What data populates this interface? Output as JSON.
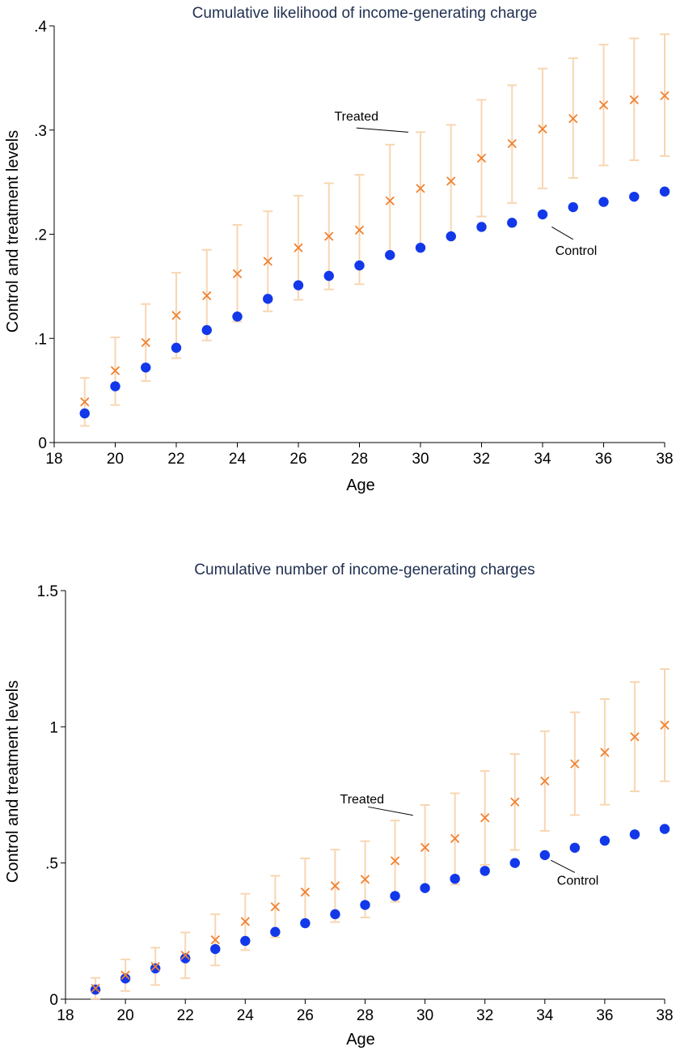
{
  "colors": {
    "treated": "#F0812F",
    "treated_ci": "#F8D6B2",
    "control": "#1238EA",
    "axis": "#000000",
    "title": "#1F2F4F",
    "background": "#FFFFFF"
  },
  "chart_data": [
    {
      "type": "scatter",
      "title": "Cumulative likelihood of income-generating charge",
      "xlabel": "Age",
      "ylabel": "Control and treatment levels",
      "xlim": [
        18,
        38
      ],
      "ylim": [
        0,
        0.4
      ],
      "xticks": [
        18,
        20,
        22,
        24,
        26,
        28,
        30,
        32,
        34,
        36,
        38
      ],
      "xtick_labels": [
        "18",
        "20",
        "22",
        "24",
        "26",
        "28",
        "30",
        "32",
        "34",
        "36",
        "38"
      ],
      "yticks": [
        0,
        0.1,
        0.2,
        0.3,
        0.4
      ],
      "ytick_labels": [
        "0",
        ".1",
        ".2",
        ".3",
        ".4"
      ],
      "grid": false,
      "legend": "none",
      "x": [
        19,
        20,
        21,
        22,
        23,
        24,
        25,
        26,
        27,
        28,
        29,
        30,
        31,
        32,
        33,
        34,
        35,
        36,
        37,
        38
      ],
      "series": [
        {
          "name": "Control",
          "marker": "circle",
          "values": [
            0.028,
            0.054,
            0.072,
            0.091,
            0.108,
            0.121,
            0.138,
            0.151,
            0.16,
            0.17,
            0.18,
            0.187,
            0.198,
            0.207,
            0.211,
            0.219,
            0.226,
            0.231,
            0.236,
            0.241
          ]
        },
        {
          "name": "Treated",
          "marker": "x",
          "values": [
            0.039,
            0.069,
            0.096,
            0.122,
            0.141,
            0.162,
            0.174,
            0.187,
            0.198,
            0.204,
            0.232,
            0.244,
            0.251,
            0.273,
            0.287,
            0.301,
            0.311,
            0.324,
            0.329,
            0.333
          ],
          "ci_low": [
            0.016,
            0.036,
            0.059,
            0.081,
            0.098,
            0.116,
            0.126,
            0.137,
            0.147,
            0.152,
            0.178,
            0.189,
            0.196,
            0.217,
            0.23,
            0.244,
            0.254,
            0.266,
            0.271,
            0.275
          ],
          "ci_high": [
            0.062,
            0.101,
            0.133,
            0.163,
            0.185,
            0.209,
            0.222,
            0.237,
            0.249,
            0.257,
            0.286,
            0.298,
            0.305,
            0.329,
            0.343,
            0.359,
            0.369,
            0.382,
            0.388,
            0.392
          ]
        }
      ],
      "annotations": [
        {
          "text": "Treated",
          "target_series": "Treated",
          "from": [
            27.9,
            0.302
          ],
          "to": [
            29.6,
            0.298
          ],
          "label_at": [
            27.9,
            0.313
          ]
        },
        {
          "text": "Control",
          "target_series": "Control",
          "from": [
            35.0,
            0.195
          ],
          "to": [
            34.3,
            0.207
          ],
          "label_at": [
            35.1,
            0.184
          ]
        }
      ]
    },
    {
      "type": "scatter",
      "title": "Cumulative number of income-generating charges",
      "xlabel": "Age",
      "ylabel": "Control and treatment levels",
      "xlim": [
        18,
        38
      ],
      "ylim": [
        0,
        1.5
      ],
      "xticks": [
        18,
        20,
        22,
        24,
        26,
        28,
        30,
        32,
        34,
        36,
        38
      ],
      "xtick_labels": [
        "18",
        "20",
        "22",
        "24",
        "26",
        "28",
        "30",
        "32",
        "34",
        "36",
        "38"
      ],
      "yticks": [
        0,
        0.5,
        1,
        1.5
      ],
      "ytick_labels": [
        "0",
        ".5",
        "1",
        "1.5"
      ],
      "grid": false,
      "legend": "none",
      "x": [
        19,
        20,
        21,
        22,
        23,
        24,
        25,
        26,
        27,
        28,
        29,
        30,
        31,
        32,
        33,
        34,
        35,
        36,
        37,
        38
      ],
      "series": [
        {
          "name": "Control",
          "marker": "circle",
          "values": [
            0.035,
            0.076,
            0.113,
            0.15,
            0.184,
            0.214,
            0.247,
            0.279,
            0.312,
            0.346,
            0.379,
            0.408,
            0.442,
            0.471,
            0.5,
            0.529,
            0.556,
            0.582,
            0.605,
            0.625
          ]
        },
        {
          "name": "Treated",
          "marker": "x",
          "values": [
            0.04,
            0.088,
            0.12,
            0.161,
            0.218,
            0.285,
            0.339,
            0.393,
            0.416,
            0.44,
            0.508,
            0.557,
            0.59,
            0.666,
            0.724,
            0.801,
            0.864,
            0.906,
            0.963,
            1.006
          ],
          "ci_low": [
            0.002,
            0.03,
            0.052,
            0.077,
            0.124,
            0.18,
            0.227,
            0.276,
            0.283,
            0.3,
            0.358,
            0.401,
            0.421,
            0.493,
            0.548,
            0.618,
            0.676,
            0.714,
            0.763,
            0.8
          ],
          "ci_high": [
            0.078,
            0.146,
            0.189,
            0.245,
            0.312,
            0.387,
            0.453,
            0.517,
            0.549,
            0.58,
            0.656,
            0.713,
            0.756,
            0.838,
            0.9,
            0.984,
            1.053,
            1.102,
            1.164,
            1.212
          ]
        }
      ],
      "annotations": [
        {
          "text": "Treated",
          "target_series": "Treated",
          "from": [
            28.1,
            0.706
          ],
          "to": [
            29.6,
            0.675
          ],
          "label_at": [
            27.9,
            0.733
          ]
        },
        {
          "text": "Control",
          "target_series": "Control",
          "from": [
            35.0,
            0.465
          ],
          "to": [
            34.2,
            0.51
          ],
          "label_at": [
            35.1,
            0.435
          ]
        }
      ]
    }
  ]
}
